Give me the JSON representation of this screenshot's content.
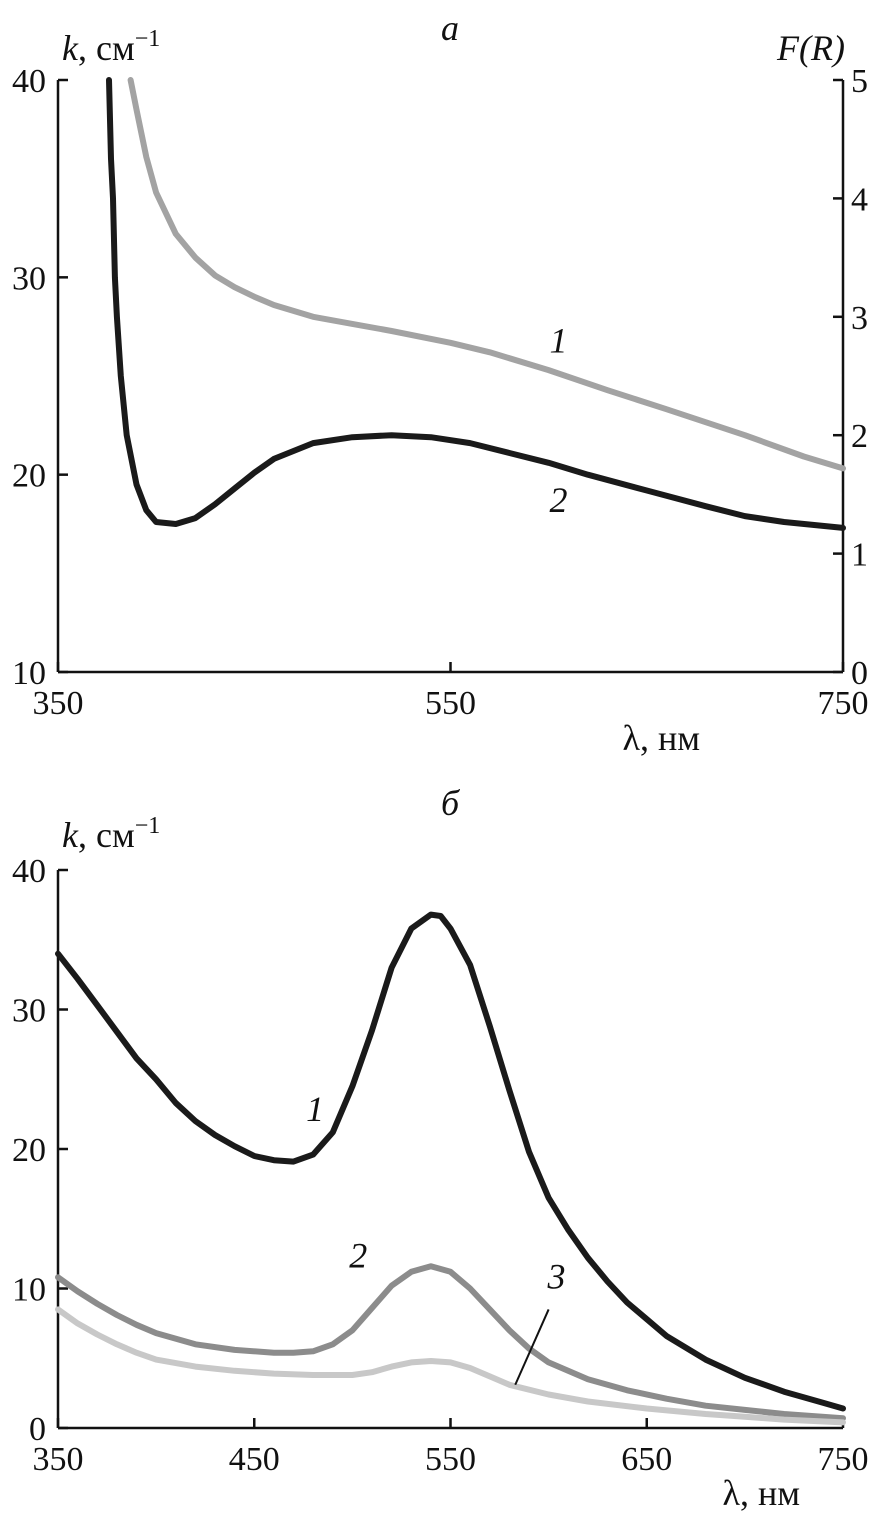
{
  "chart_data": [
    {
      "type": "line",
      "title": "a",
      "xlabel": "λ, нм",
      "ylabel": "k, см",
      "ylabel_sup": "−1",
      "y2label": "F(R)",
      "xlim": [
        350,
        750
      ],
      "ylim": [
        10,
        40
      ],
      "y2lim": [
        0,
        5
      ],
      "xticks": [
        350,
        550,
        750
      ],
      "yticks": [
        10,
        20,
        30,
        40
      ],
      "y2ticks": [
        0,
        1,
        2,
        3,
        4,
        5
      ],
      "grid": false,
      "series": [
        {
          "name": "1",
          "axis": "y2",
          "color": "#a3a3a3",
          "x": [
            387,
            390,
            395,
            400,
            410,
            420,
            430,
            440,
            450,
            460,
            470,
            480,
            500,
            520,
            550,
            570,
            600,
            630,
            660,
            700,
            730,
            750
          ],
          "y": [
            5.0,
            4.75,
            4.35,
            4.05,
            3.7,
            3.5,
            3.35,
            3.25,
            3.17,
            3.1,
            3.05,
            3.0,
            2.94,
            2.88,
            2.78,
            2.7,
            2.55,
            2.38,
            2.22,
            2.0,
            1.82,
            1.72
          ]
        },
        {
          "name": "2",
          "axis": "y",
          "color": "#1a1a1a",
          "x": [
            376,
            377,
            378,
            379,
            380,
            382,
            385,
            390,
            395,
            400,
            410,
            420,
            430,
            440,
            450,
            460,
            470,
            480,
            500,
            520,
            540,
            560,
            580,
            600,
            620,
            650,
            680,
            700,
            720,
            750
          ],
          "y": [
            40,
            36,
            34,
            30,
            28,
            25,
            22,
            19.5,
            18.2,
            17.6,
            17.5,
            17.8,
            18.5,
            19.3,
            20.1,
            20.8,
            21.2,
            21.6,
            21.9,
            22.0,
            21.9,
            21.6,
            21.1,
            20.6,
            20.0,
            19.2,
            18.4,
            17.9,
            17.6,
            17.3
          ]
        }
      ],
      "annotations": [
        {
          "text": "1",
          "x": 605,
          "y": 26.2
        },
        {
          "text": "2",
          "x": 605,
          "y": 18.1
        }
      ]
    },
    {
      "type": "line",
      "title": "б",
      "xlabel": "λ, нм",
      "ylabel": "k, см",
      "ylabel_sup": "−1",
      "xlim": [
        350,
        750
      ],
      "ylim": [
        0,
        40
      ],
      "xticks": [
        350,
        450,
        550,
        650,
        750
      ],
      "yticks": [
        0,
        10,
        20,
        30,
        40
      ],
      "grid": false,
      "series": [
        {
          "name": "1",
          "color": "#1a1a1a",
          "x": [
            350,
            360,
            370,
            380,
            390,
            400,
            410,
            420,
            430,
            440,
            450,
            460,
            470,
            480,
            490,
            500,
            510,
            520,
            530,
            540,
            545,
            550,
            560,
            570,
            580,
            590,
            600,
            610,
            620,
            630,
            640,
            650,
            660,
            680,
            700,
            720,
            740,
            750
          ],
          "y": [
            34,
            32.2,
            30.3,
            28.4,
            26.5,
            25.0,
            23.3,
            22.0,
            21.0,
            20.2,
            19.5,
            19.2,
            19.1,
            19.6,
            21.2,
            24.5,
            28.5,
            33.0,
            35.8,
            36.8,
            36.7,
            35.8,
            33.2,
            28.8,
            24.2,
            19.8,
            16.5,
            14.2,
            12.2,
            10.5,
            9.0,
            7.8,
            6.6,
            4.9,
            3.6,
            2.6,
            1.8,
            1.4
          ]
        },
        {
          "name": "2",
          "color": "#8c8c8c",
          "x": [
            350,
            360,
            370,
            380,
            390,
            400,
            420,
            440,
            460,
            470,
            480,
            490,
            500,
            510,
            520,
            530,
            540,
            550,
            560,
            570,
            580,
            590,
            600,
            620,
            640,
            660,
            680,
            700,
            720,
            750
          ],
          "y": [
            10.8,
            9.8,
            8.9,
            8.1,
            7.4,
            6.8,
            6.0,
            5.6,
            5.4,
            5.4,
            5.5,
            6.0,
            7.0,
            8.6,
            10.2,
            11.2,
            11.6,
            11.2,
            10.0,
            8.5,
            7.0,
            5.7,
            4.7,
            3.5,
            2.7,
            2.1,
            1.6,
            1.3,
            1.0,
            0.7
          ]
        },
        {
          "name": "3",
          "color": "#c8c8c8",
          "x": [
            350,
            360,
            370,
            380,
            390,
            400,
            420,
            440,
            460,
            480,
            500,
            510,
            520,
            530,
            540,
            550,
            560,
            570,
            580,
            600,
            620,
            650,
            680,
            700,
            720,
            750
          ],
          "y": [
            8.5,
            7.5,
            6.7,
            6.0,
            5.4,
            4.9,
            4.4,
            4.1,
            3.9,
            3.8,
            3.8,
            4.0,
            4.4,
            4.7,
            4.8,
            4.7,
            4.3,
            3.7,
            3.1,
            2.4,
            1.9,
            1.4,
            1.0,
            0.8,
            0.6,
            0.4
          ]
        }
      ],
      "annotations": [
        {
          "text": "1",
          "x": 481,
          "y": 22.0
        },
        {
          "text": "2",
          "x": 503,
          "y": 11.5
        },
        {
          "text": "3",
          "x": 604,
          "y": 10.0
        }
      ]
    }
  ]
}
